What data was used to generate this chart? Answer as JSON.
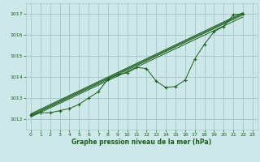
{
  "bg_color": "#cce8e8",
  "grid_color": "#aacccc",
  "line_color": "#1a5c1a",
  "xlabel": "Graphe pression niveau de la mer (hPa)",
  "xlim": [
    -0.5,
    23.5
  ],
  "ylim": [
    1011.5,
    1017.5
  ],
  "yticks": [
    1012,
    1013,
    1014,
    1015,
    1016,
    1017
  ],
  "xticks": [
    0,
    1,
    2,
    3,
    4,
    5,
    6,
    7,
    8,
    9,
    10,
    11,
    12,
    13,
    14,
    15,
    16,
    17,
    18,
    19,
    20,
    21,
    22,
    23
  ],
  "main_series": [
    [
      0,
      1012.2
    ],
    [
      1,
      1012.3
    ],
    [
      2,
      1012.3
    ],
    [
      3,
      1012.4
    ],
    [
      4,
      1012.5
    ],
    [
      5,
      1012.7
    ],
    [
      6,
      1013.0
    ],
    [
      7,
      1013.3
    ],
    [
      8,
      1013.9
    ],
    [
      9,
      1014.1
    ],
    [
      10,
      1014.2
    ],
    [
      11,
      1014.45
    ],
    [
      12,
      1014.4
    ],
    [
      13,
      1013.8
    ],
    [
      14,
      1013.5
    ],
    [
      15,
      1013.55
    ],
    [
      16,
      1013.85
    ],
    [
      17,
      1014.85
    ],
    [
      18,
      1015.55
    ],
    [
      19,
      1016.15
    ],
    [
      20,
      1016.4
    ],
    [
      21,
      1016.95
    ],
    [
      22,
      1017.0
    ]
  ],
  "trend_lines": [
    [
      [
        0,
        1012.1
      ],
      [
        22,
        1016.85
      ]
    ],
    [
      [
        0,
        1012.15
      ],
      [
        22,
        1016.95
      ]
    ],
    [
      [
        0,
        1012.2
      ],
      [
        22,
        1017.0
      ]
    ],
    [
      [
        0,
        1012.25
      ],
      [
        22,
        1017.05
      ]
    ]
  ]
}
